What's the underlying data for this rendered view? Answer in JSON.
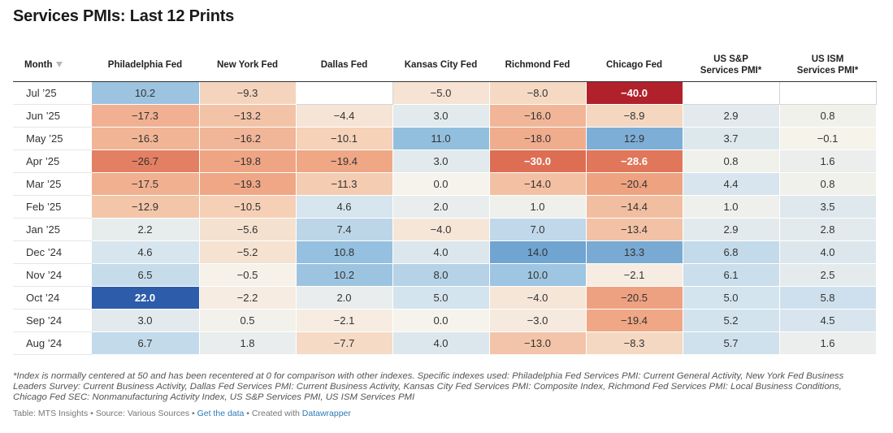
{
  "title": "Services PMIs: Last 12 Prints",
  "chart_data": {
    "type": "table",
    "title": "Services PMIs: Last 12 Prints",
    "columns": [
      {
        "label": "Month",
        "sortable": true
      },
      {
        "label": "Philadelphia Fed"
      },
      {
        "label": "New York Fed"
      },
      {
        "label": "Dallas Fed"
      },
      {
        "label": "Kansas City Fed"
      },
      {
        "label": "Richmond Fed"
      },
      {
        "label": "Chicago Fed"
      },
      {
        "label": "US S&P\nServices PMI*"
      },
      {
        "label": "US ISM\nServices PMI*"
      }
    ],
    "rows": [
      {
        "month": "Jul '25",
        "values": [
          10.2,
          -9.3,
          null,
          -5.0,
          -8.0,
          -40.0,
          null,
          null
        ]
      },
      {
        "month": "Jun '25",
        "values": [
          -17.3,
          -13.2,
          -4.4,
          3.0,
          -16.0,
          -8.9,
          2.9,
          0.8
        ]
      },
      {
        "month": "May '25",
        "values": [
          -16.3,
          -16.2,
          -10.1,
          11.0,
          -18.0,
          12.9,
          3.7,
          -0.1
        ]
      },
      {
        "month": "Apr '25",
        "values": [
          -26.7,
          -19.8,
          -19.4,
          3.0,
          -30.0,
          -28.6,
          0.8,
          1.6
        ]
      },
      {
        "month": "Mar '25",
        "values": [
          -17.5,
          -19.3,
          -11.3,
          0.0,
          -14.0,
          -20.4,
          4.4,
          0.8
        ]
      },
      {
        "month": "Feb '25",
        "values": [
          -12.9,
          -10.5,
          4.6,
          2.0,
          1.0,
          -14.4,
          1.0,
          3.5
        ]
      },
      {
        "month": "Jan '25",
        "values": [
          2.2,
          -5.6,
          7.4,
          -4.0,
          7.0,
          -13.4,
          2.9,
          2.8
        ]
      },
      {
        "month": "Dec '24",
        "values": [
          4.6,
          -5.2,
          10.8,
          4.0,
          14.0,
          13.3,
          6.8,
          4.0
        ]
      },
      {
        "month": "Nov '24",
        "values": [
          6.5,
          -0.5,
          10.2,
          8.0,
          10.0,
          -2.1,
          6.1,
          2.5
        ]
      },
      {
        "month": "Oct '24",
        "values": [
          22.0,
          -2.2,
          2.0,
          5.0,
          -4.0,
          -20.5,
          5.0,
          5.8
        ]
      },
      {
        "month": "Sep '24",
        "values": [
          3.0,
          0.5,
          -2.1,
          0.0,
          -3.0,
          -19.4,
          5.2,
          4.5
        ]
      },
      {
        "month": "Aug '24",
        "values": [
          6.7,
          1.8,
          -7.7,
          4.0,
          -13.0,
          -8.3,
          5.7,
          1.6
        ]
      }
    ]
  },
  "notes": "*Index is normally centered at 50 and has been recentered at 0 for comparison with other indexes. Specific indexes used: Philadelphia Fed Services PMI: Current General Activity, New York Fed Business Leaders Survey: Current Business Activity, Dallas Fed Services PMI: Current Business Activity, Kansas City Fed Services PMI: Composite Index, Richmond Fed Services PMI: Local Business Conditions, Chicago Fed SEC: Nonmanufacturing Activity Index, US S&P Services PMI, US ISM Services PMI",
  "footer": {
    "prefix": "Table: MTS Insights • Source: Various Sources • ",
    "link1": "Get the data",
    "middle": " • Created with ",
    "link2": "Datawrapper"
  }
}
